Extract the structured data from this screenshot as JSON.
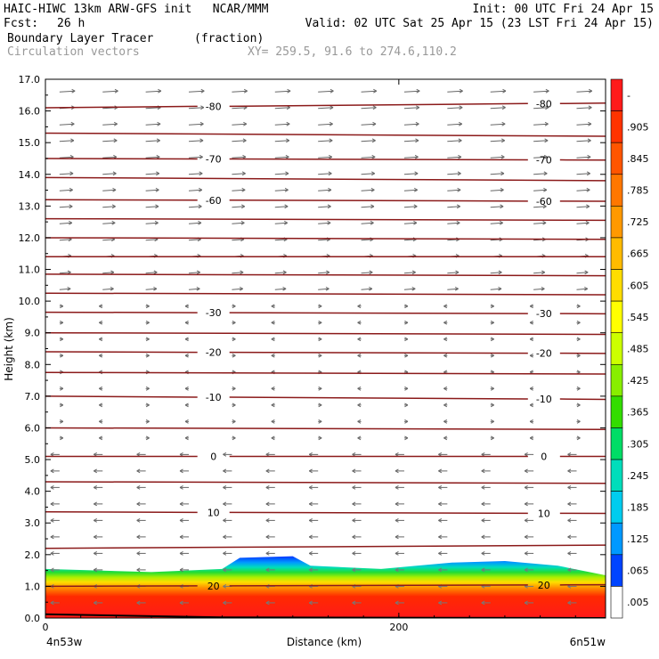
{
  "header": {
    "model": "HAIC-HIWC 13km ARW-GFS init   NCAR/MMM",
    "init": "Init: 00 UTC Fri 24 Apr 15",
    "fcst_label": "Fcst:",
    "fcst_value": "26 h",
    "valid": "Valid: 02 UTC Sat 25 Apr 15 (23 LST Fri 24 Apr 15)",
    "field1": "Boundary Layer Tracer",
    "field1_units": "(fraction)",
    "field2": "Circulation vectors",
    "xy": "XY= 259.5, 91.6 to 274.6,110.2"
  },
  "chart_data": {
    "type": "heatmap",
    "xlabel": "Distance (km)",
    "ylabel": "Height (km)",
    "x_tick_labels": [
      "0",
      "200"
    ],
    "x_endpoints": [
      "4n53w",
      "6n51w"
    ],
    "xlim": [
      0,
      317
    ],
    "ylim": [
      0,
      17
    ],
    "y_ticks": [
      0,
      1,
      2,
      3,
      4,
      5,
      6,
      7,
      8,
      9,
      10,
      11,
      12,
      13,
      14,
      15,
      16,
      17
    ],
    "y_tick_labels": [
      "0.0",
      "1.0",
      "2.0",
      "3.0",
      "4.0",
      "5.0",
      "6.0",
      "7.0",
      "8.0",
      "9.0",
      "10.0",
      "11.0",
      "12.0",
      "13.0",
      "14.0",
      "15.0",
      "16.0",
      "17.0"
    ],
    "colorbar": {
      "labels": [
        "-",
        ".905",
        ".845",
        ".785",
        ".725",
        ".665",
        ".605",
        ".545",
        ".485",
        ".425",
        ".365",
        ".305",
        ".245",
        ".185",
        ".125",
        ".065",
        ".005"
      ],
      "colors": [
        "#ff1a1a",
        "#ff3300",
        "#ff5500",
        "#ff7700",
        "#ff9900",
        "#ffbb00",
        "#ffdd00",
        "#ffff00",
        "#ccff00",
        "#88ee00",
        "#33dd00",
        "#00dd66",
        "#00ddbb",
        "#00ccee",
        "#0099ff",
        "#0044ff",
        "#ffffff"
      ]
    },
    "tracer_top_km": [
      [
        0,
        1.55
      ],
      [
        60,
        1.45
      ],
      [
        100,
        1.55
      ],
      [
        110,
        1.9
      ],
      [
        140,
        1.95
      ],
      [
        150,
        1.65
      ],
      [
        190,
        1.55
      ],
      [
        230,
        1.75
      ],
      [
        260,
        1.8
      ],
      [
        290,
        1.65
      ],
      [
        317,
        1.35
      ]
    ],
    "isotherms": [
      {
        "label": "-80",
        "y_left": 16.1,
        "y_right": 16.25,
        "show": true
      },
      {
        "label": "",
        "y_left": 15.3,
        "y_right": 15.2,
        "show": false
      },
      {
        "label": "-70",
        "y_left": 14.5,
        "y_right": 14.45,
        "show": true
      },
      {
        "label": "",
        "y_left": 13.9,
        "y_right": 13.8,
        "show": false
      },
      {
        "label": "-60",
        "y_left": 13.2,
        "y_right": 13.15,
        "show": true
      },
      {
        "label": "",
        "y_left": 12.6,
        "y_right": 12.55,
        "show": false
      },
      {
        "label": "",
        "y_left": 12.0,
        "y_right": 11.95,
        "show": false
      },
      {
        "label": "",
        "y_left": 11.4,
        "y_right": 11.4,
        "show": false
      },
      {
        "label": "",
        "y_left": 10.85,
        "y_right": 10.8,
        "show": false
      },
      {
        "label": "",
        "y_left": 10.25,
        "y_right": 10.2,
        "show": false
      },
      {
        "label": "-30",
        "y_left": 9.65,
        "y_right": 9.6,
        "show": true
      },
      {
        "label": "",
        "y_left": 9.0,
        "y_right": 8.95,
        "show": false
      },
      {
        "label": "-20",
        "y_left": 8.4,
        "y_right": 8.35,
        "show": true
      },
      {
        "label": "",
        "y_left": 7.75,
        "y_right": 7.7,
        "show": false
      },
      {
        "label": "-10",
        "y_left": 7.0,
        "y_right": 6.9,
        "show": true
      },
      {
        "label": "",
        "y_left": 6.0,
        "y_right": 5.95,
        "show": false
      },
      {
        "label": "0",
        "y_left": 5.1,
        "y_right": 5.1,
        "show": true
      },
      {
        "label": "",
        "y_left": 4.3,
        "y_right": 4.25,
        "show": false
      },
      {
        "label": "10",
        "y_left": 3.35,
        "y_right": 3.3,
        "show": true
      },
      {
        "label": "",
        "y_left": 2.2,
        "y_right": 2.3,
        "show": false
      },
      {
        "label": "20",
        "y_left": 1.0,
        "y_right": 1.05,
        "show": true
      }
    ],
    "wind_regimes": [
      {
        "from_km": 17,
        "to_km": 10,
        "direction": "east"
      },
      {
        "from_km": 10,
        "to_km": 5.5,
        "direction": "light"
      },
      {
        "from_km": 5.5,
        "to_km": 0,
        "direction": "west"
      }
    ]
  }
}
